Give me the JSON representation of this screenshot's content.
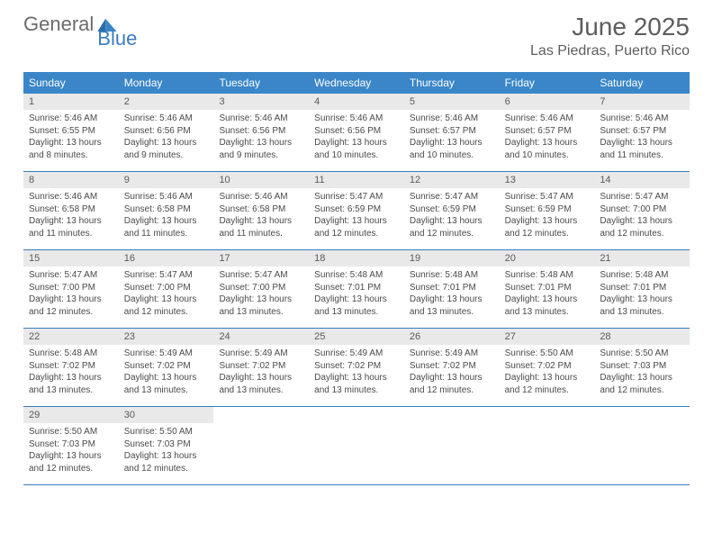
{
  "logo": {
    "general": "General",
    "blue": "Blue"
  },
  "header": {
    "title": "June 2025",
    "location": "Las Piedras, Puerto Rico"
  },
  "colors": {
    "header_bg": "#3a86c8",
    "header_text": "#ffffff",
    "daynum_bg": "#e9e9e9",
    "border": "#3a7cbf",
    "body_text": "#4a4a4a",
    "title_text": "#5d5d5d"
  },
  "weekdays": [
    "Sunday",
    "Monday",
    "Tuesday",
    "Wednesday",
    "Thursday",
    "Friday",
    "Saturday"
  ],
  "weeks": [
    [
      {
        "n": "1",
        "sr": "5:46 AM",
        "ss": "6:55 PM",
        "dl": "13 hours and 8 minutes."
      },
      {
        "n": "2",
        "sr": "5:46 AM",
        "ss": "6:56 PM",
        "dl": "13 hours and 9 minutes."
      },
      {
        "n": "3",
        "sr": "5:46 AM",
        "ss": "6:56 PM",
        "dl": "13 hours and 9 minutes."
      },
      {
        "n": "4",
        "sr": "5:46 AM",
        "ss": "6:56 PM",
        "dl": "13 hours and 10 minutes."
      },
      {
        "n": "5",
        "sr": "5:46 AM",
        "ss": "6:57 PM",
        "dl": "13 hours and 10 minutes."
      },
      {
        "n": "6",
        "sr": "5:46 AM",
        "ss": "6:57 PM",
        "dl": "13 hours and 10 minutes."
      },
      {
        "n": "7",
        "sr": "5:46 AM",
        "ss": "6:57 PM",
        "dl": "13 hours and 11 minutes."
      }
    ],
    [
      {
        "n": "8",
        "sr": "5:46 AM",
        "ss": "6:58 PM",
        "dl": "13 hours and 11 minutes."
      },
      {
        "n": "9",
        "sr": "5:46 AM",
        "ss": "6:58 PM",
        "dl": "13 hours and 11 minutes."
      },
      {
        "n": "10",
        "sr": "5:46 AM",
        "ss": "6:58 PM",
        "dl": "13 hours and 11 minutes."
      },
      {
        "n": "11",
        "sr": "5:47 AM",
        "ss": "6:59 PM",
        "dl": "13 hours and 12 minutes."
      },
      {
        "n": "12",
        "sr": "5:47 AM",
        "ss": "6:59 PM",
        "dl": "13 hours and 12 minutes."
      },
      {
        "n": "13",
        "sr": "5:47 AM",
        "ss": "6:59 PM",
        "dl": "13 hours and 12 minutes."
      },
      {
        "n": "14",
        "sr": "5:47 AM",
        "ss": "7:00 PM",
        "dl": "13 hours and 12 minutes."
      }
    ],
    [
      {
        "n": "15",
        "sr": "5:47 AM",
        "ss": "7:00 PM",
        "dl": "13 hours and 12 minutes."
      },
      {
        "n": "16",
        "sr": "5:47 AM",
        "ss": "7:00 PM",
        "dl": "13 hours and 12 minutes."
      },
      {
        "n": "17",
        "sr": "5:47 AM",
        "ss": "7:00 PM",
        "dl": "13 hours and 13 minutes."
      },
      {
        "n": "18",
        "sr": "5:48 AM",
        "ss": "7:01 PM",
        "dl": "13 hours and 13 minutes."
      },
      {
        "n": "19",
        "sr": "5:48 AM",
        "ss": "7:01 PM",
        "dl": "13 hours and 13 minutes."
      },
      {
        "n": "20",
        "sr": "5:48 AM",
        "ss": "7:01 PM",
        "dl": "13 hours and 13 minutes."
      },
      {
        "n": "21",
        "sr": "5:48 AM",
        "ss": "7:01 PM",
        "dl": "13 hours and 13 minutes."
      }
    ],
    [
      {
        "n": "22",
        "sr": "5:48 AM",
        "ss": "7:02 PM",
        "dl": "13 hours and 13 minutes."
      },
      {
        "n": "23",
        "sr": "5:49 AM",
        "ss": "7:02 PM",
        "dl": "13 hours and 13 minutes."
      },
      {
        "n": "24",
        "sr": "5:49 AM",
        "ss": "7:02 PM",
        "dl": "13 hours and 13 minutes."
      },
      {
        "n": "25",
        "sr": "5:49 AM",
        "ss": "7:02 PM",
        "dl": "13 hours and 13 minutes."
      },
      {
        "n": "26",
        "sr": "5:49 AM",
        "ss": "7:02 PM",
        "dl": "13 hours and 12 minutes."
      },
      {
        "n": "27",
        "sr": "5:50 AM",
        "ss": "7:02 PM",
        "dl": "13 hours and 12 minutes."
      },
      {
        "n": "28",
        "sr": "5:50 AM",
        "ss": "7:03 PM",
        "dl": "13 hours and 12 minutes."
      }
    ],
    [
      {
        "n": "29",
        "sr": "5:50 AM",
        "ss": "7:03 PM",
        "dl": "13 hours and 12 minutes."
      },
      {
        "n": "30",
        "sr": "5:50 AM",
        "ss": "7:03 PM",
        "dl": "13 hours and 12 minutes."
      },
      null,
      null,
      null,
      null,
      null
    ]
  ],
  "labels": {
    "sunrise_prefix": "Sunrise: ",
    "sunset_prefix": "Sunset: ",
    "daylight_prefix": "Daylight: "
  }
}
